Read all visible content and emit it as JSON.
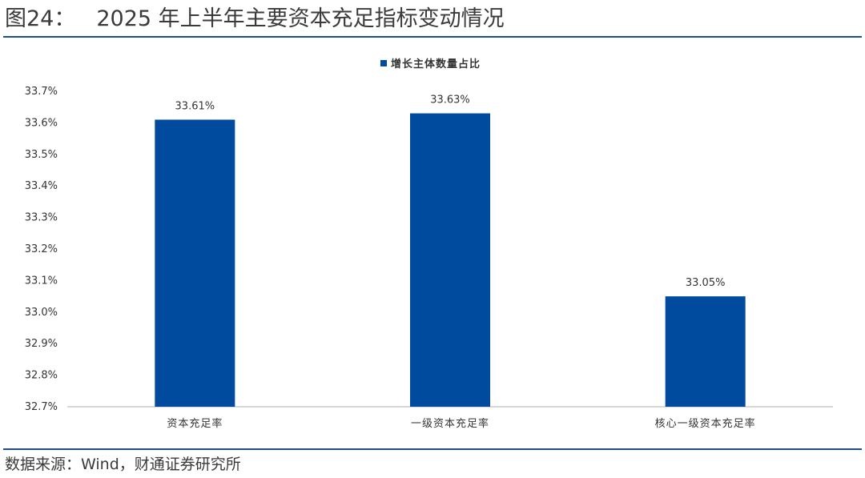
{
  "figure": {
    "number": "图24：",
    "title": "2025 年上半年主要资本充足指标变动情况",
    "source": "数据来源：Wind，财通证券研究所"
  },
  "colors": {
    "bar": "#004b9e",
    "rule": "#1f4e8c",
    "axis": "#b0b0b0"
  },
  "chart_data": {
    "type": "bar",
    "categories": [
      "资本充足率",
      "一级资本充足率",
      "核心一级资本充足率"
    ],
    "series": [
      {
        "name": "增长主体数量占比",
        "values": [
          33.61,
          33.63,
          33.05
        ],
        "labels": [
          "33.61%",
          "33.63%",
          "33.05%"
        ]
      }
    ],
    "ylim": [
      32.7,
      33.7
    ],
    "yticks": [
      32.7,
      32.8,
      32.9,
      33.0,
      33.1,
      33.2,
      33.3,
      33.4,
      33.5,
      33.6,
      33.7
    ],
    "ytick_labels": [
      "32.7%",
      "32.8%",
      "32.9%",
      "33.0%",
      "33.1%",
      "33.2%",
      "33.3%",
      "33.4%",
      "33.5%",
      "33.6%",
      "33.7%"
    ],
    "legend_position": "top-center",
    "grid": false
  }
}
